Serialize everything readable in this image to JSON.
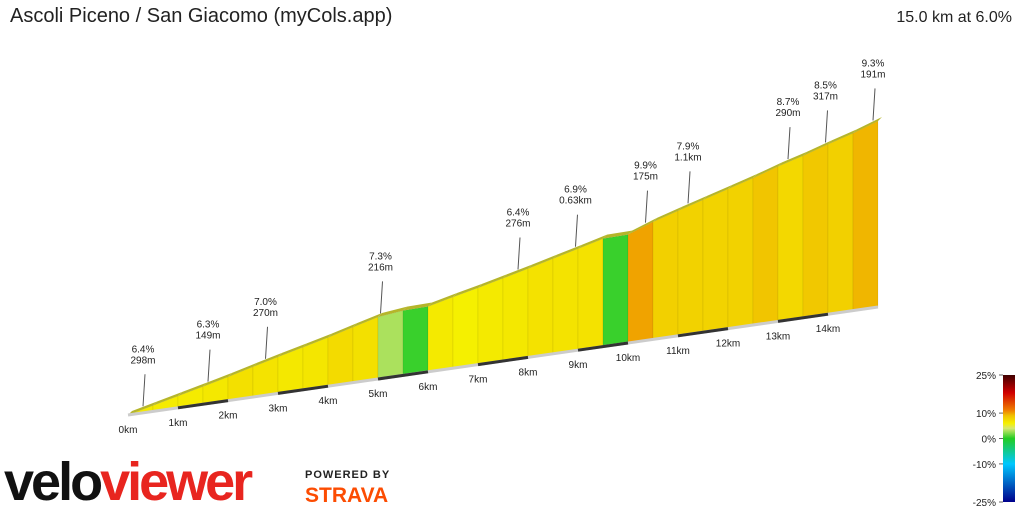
{
  "chart_data": {
    "type": "profile",
    "title": "Ascoli Piceno / San Giacomo (myCols.app)",
    "subtitle": "15.0 km at 6.0%",
    "segment_length_km": 0.5,
    "gradients": [
      6.4,
      6.3,
      6.3,
      6.5,
      7.0,
      6.8,
      6.5,
      6.6,
      7.3,
      7.0,
      3.0,
      0.5,
      6.4,
      6.0,
      6.4,
      6.5,
      6.9,
      6.8,
      6.9,
      0.5,
      9.9,
      8.0,
      7.9,
      7.8,
      7.9,
      8.7,
      7.5,
      8.5,
      8.0,
      9.3
    ],
    "xlim": [
      0,
      15
    ],
    "xticks": [
      {
        "value": 0,
        "label": "0km"
      },
      {
        "value": 1,
        "label": "1km"
      },
      {
        "value": 2,
        "label": "2km"
      },
      {
        "value": 3,
        "label": "3km"
      },
      {
        "value": 4,
        "label": "4km"
      },
      {
        "value": 5,
        "label": "5km"
      },
      {
        "value": 6,
        "label": "6km"
      },
      {
        "value": 7,
        "label": "7km"
      },
      {
        "value": 8,
        "label": "8km"
      },
      {
        "value": 9,
        "label": "9km"
      },
      {
        "value": 10,
        "label": "10km"
      },
      {
        "value": 11,
        "label": "11km"
      },
      {
        "value": 12,
        "label": "12km"
      },
      {
        "value": 13,
        "label": "13km"
      },
      {
        "value": 14,
        "label": "14km"
      }
    ],
    "annotations": [
      {
        "x": 0.3,
        "gradient": "6.4%",
        "length": "298m"
      },
      {
        "x": 1.6,
        "gradient": "6.3%",
        "length": "149m"
      },
      {
        "x": 2.75,
        "gradient": "7.0%",
        "length": "270m"
      },
      {
        "x": 5.05,
        "gradient": "7.3%",
        "length": "216m"
      },
      {
        "x": 7.8,
        "gradient": "6.4%",
        "length": "276m"
      },
      {
        "x": 8.95,
        "gradient": "6.9%",
        "length": "0.63km"
      },
      {
        "x": 10.35,
        "gradient": "9.9%",
        "length": "175m"
      },
      {
        "x": 11.2,
        "gradient": "7.9%",
        "length": "1.1km"
      },
      {
        "x": 13.2,
        "gradient": "8.7%",
        "length": "290m"
      },
      {
        "x": 13.95,
        "gradient": "8.5%",
        "length": "317m"
      },
      {
        "x": 14.9,
        "gradient": "9.3%",
        "length": "191m"
      }
    ],
    "colorscale": [
      {
        "value": -25,
        "color": "#00008b"
      },
      {
        "value": -10,
        "color": "#00c8ff"
      },
      {
        "value": 0,
        "color": "#22cc22"
      },
      {
        "value": 4,
        "color": "#d8e870"
      },
      {
        "value": 6,
        "color": "#f5f000"
      },
      {
        "value": 9,
        "color": "#f0c000"
      },
      {
        "value": 11,
        "color": "#f08000"
      },
      {
        "value": 18,
        "color": "#d00000"
      },
      {
        "value": 25,
        "color": "#400000"
      }
    ],
    "clim": [
      -25,
      25
    ],
    "cticks": [
      {
        "value": 25,
        "label": "25%"
      },
      {
        "value": 10,
        "label": "10%"
      },
      {
        "value": 0,
        "label": "0%"
      },
      {
        "value": -10,
        "label": "-10%"
      },
      {
        "value": -25,
        "label": "-25%"
      }
    ]
  },
  "brand": {
    "logo": [
      "velo",
      "viewer"
    ],
    "powered": "POWERED BY",
    "strava": "STRAVA"
  }
}
